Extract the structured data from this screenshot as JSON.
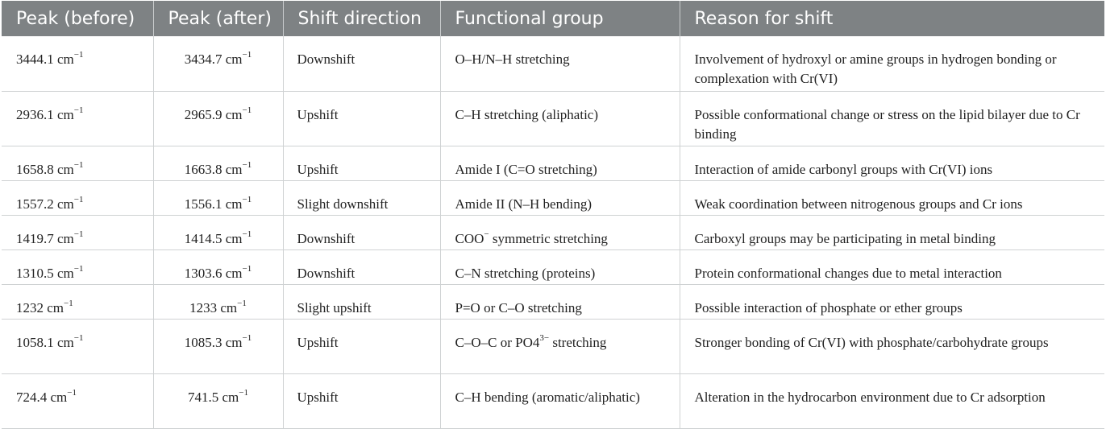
{
  "headers": [
    "Peak (before)",
    "Peak (after)",
    "Shift direction",
    "Functional group",
    "Reason for shift"
  ],
  "unit": "cm",
  "unit_exp": "−1",
  "rows": [
    {
      "before": "3444.1",
      "after": "3434.7",
      "direction": "Downshift",
      "group": "O–H/N–H stretching",
      "group_sup": "",
      "group_tail": "",
      "reason": "Involvement of hydroxyl or amine groups in hydrogen bonding or complexation with Cr(VI)"
    },
    {
      "before": "2936.1",
      "after": "2965.9",
      "direction": "Upshift",
      "group": "C–H stretching (aliphatic)",
      "group_sup": "",
      "group_tail": "",
      "reason": "Possible conformational change or stress on the lipid bilayer due to Cr binding"
    },
    {
      "before": "1658.8",
      "after": "1663.8",
      "direction": "Upshift",
      "group": "Amide I (C=O stretching)",
      "group_sup": "",
      "group_tail": "",
      "reason": "Interaction of amide carbonyl groups with Cr(VI) ions"
    },
    {
      "before": "1557.2",
      "after": "1556.1",
      "direction": "Slight downshift",
      "group": "Amide II (N–H bending)",
      "group_sup": "",
      "group_tail": "",
      "reason": "Weak coordination between nitrogenous groups and Cr ions"
    },
    {
      "before": "1419.7",
      "after": "1414.5",
      "direction": "Downshift",
      "group": "COO",
      "group_sup": "−",
      "group_tail": " symmetric stretching",
      "reason": "Carboxyl groups may be participating in metal binding"
    },
    {
      "before": "1310.5",
      "after": "1303.6",
      "direction": "Downshift",
      "group": "C–N stretching (proteins)",
      "group_sup": "",
      "group_tail": "",
      "reason": "Protein conformational changes due to metal interaction"
    },
    {
      "before": "1232",
      "after": "1233",
      "direction": "Slight upshift",
      "group": "P=O or C–O stretching",
      "group_sup": "",
      "group_tail": "",
      "reason": "Possible interaction of phosphate or ether groups"
    },
    {
      "before": "1058.1",
      "after": "1085.3",
      "direction": "Upshift",
      "group": "C–O–C or PO4",
      "group_sup": "3−",
      "group_tail": " stretching",
      "reason": "Stronger bonding of Cr(VI) with phosphate/carbohydrate groups"
    },
    {
      "before": "724.4",
      "after": "741.5",
      "direction": "Upshift",
      "group": "C–H bending (aromatic/aliphatic)",
      "group_sup": "",
      "group_tail": "",
      "reason": "Alteration in the hydrocarbon environment due to Cr adsorption"
    }
  ]
}
